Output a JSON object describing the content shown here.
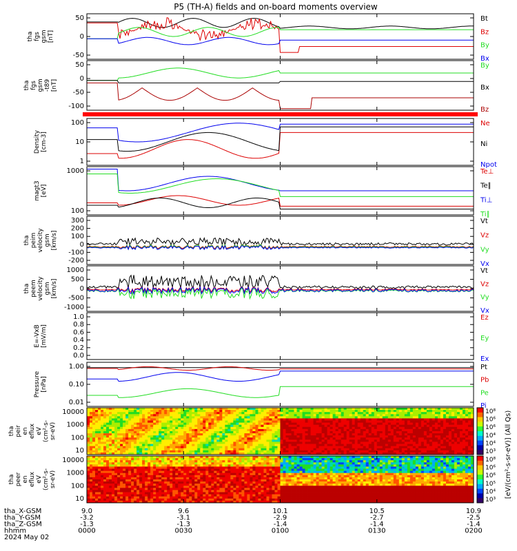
{
  "title": "P5 (TH-A) fields and on-board moments overview",
  "colors": {
    "black": "#000000",
    "red": "#dd0000",
    "green": "#22dd22",
    "blue": "#0000ee",
    "darkred": "#aa0000",
    "band": "#ff0000"
  },
  "chart_data": {
    "type": "line",
    "x_axis": {
      "rows": [
        {
          "label": "tha_X-GSM",
          "values": [
            "9.0",
            "9.6",
            "10.1",
            "10.5",
            "10.9"
          ]
        },
        {
          "label": "tha_Y-GSM",
          "values": [
            "-3.2",
            "-3.1",
            "-2.9",
            "-2.7",
            "-2.5"
          ]
        },
        {
          "label": "tha_Z-GSM",
          "values": [
            "-1.3",
            "-1.3",
            "-1.4",
            "-1.4",
            "-1.4"
          ]
        },
        {
          "label": "hhmm",
          "values": [
            "0000",
            "0030",
            "0100",
            "0130",
            "0200"
          ]
        }
      ],
      "date": "2024 May 02",
      "time_range": [
        "00:00",
        "02:00"
      ]
    },
    "panels": [
      {
        "id": "fgs-gsm",
        "ylabel": [
          "tha",
          "fgs",
          "gsm",
          "[nT]"
        ],
        "ticks": [
          "50",
          "0",
          "-50"
        ],
        "ylim": [
          -75,
          85
        ],
        "series": [
          {
            "name": "Bt",
            "color": "black"
          },
          {
            "name": "Bz",
            "color": "red"
          },
          {
            "name": "By",
            "color": "green"
          },
          {
            "name": "Bx",
            "color": "blue"
          }
        ]
      },
      {
        "id": "fgs-gsm-t89",
        "ylabel": [
          "tha",
          "fgs",
          "gsm",
          "-t89",
          "[nT]"
        ],
        "ticks": [
          "50",
          "0",
          "-50",
          "-100"
        ],
        "ylim": [
          -125,
          75
        ],
        "series": [
          {
            "name": "By",
            "color": "green"
          },
          {
            "name": "Bx",
            "color": "black"
          },
          {
            "name": "Bz",
            "color": "darkred"
          }
        ]
      },
      {
        "id": "density",
        "ylabel": [
          "Density",
          "[cm-3]"
        ],
        "ticks": [
          "100",
          "10",
          "1"
        ],
        "log": true,
        "ylim": [
          0.4,
          150
        ],
        "series": [
          {
            "name": "Ne",
            "color": "red"
          },
          {
            "name": "Ni",
            "color": "black"
          },
          {
            "name": "Npot",
            "color": "blue"
          }
        ]
      },
      {
        "id": "temperature",
        "ylabel": [
          "magt3",
          "[eV]"
        ],
        "ticks": [
          "1000",
          "100"
        ],
        "log": true,
        "ylim": [
          40,
          3000
        ],
        "series": [
          {
            "name": "Te⊥",
            "color": "red"
          },
          {
            "name": "Te∥",
            "color": "black"
          },
          {
            "name": "Ti⊥",
            "color": "blue"
          },
          {
            "name": "Ti∥",
            "color": "green"
          }
        ]
      },
      {
        "id": "peim-velocity",
        "ylabel": [
          "tha",
          "peim",
          "velocity",
          "gsm",
          "[km/s]"
        ],
        "ticks": [
          "300",
          "200",
          "100",
          "0",
          "-100",
          "-200"
        ],
        "ylim": [
          -220,
          360
        ],
        "series": [
          {
            "name": "Vt",
            "color": "black"
          },
          {
            "name": "Vz",
            "color": "red"
          },
          {
            "name": "Vy",
            "color": "green"
          },
          {
            "name": "Vx",
            "color": "blue"
          }
        ]
      },
      {
        "id": "peem-velocity",
        "ylabel": [
          "tha",
          "peem",
          "velocity",
          "gsm",
          "[km/s]"
        ],
        "ticks": [
          "1000",
          "500",
          "0",
          "-500",
          "-1000"
        ],
        "ylim": [
          -1100,
          1150
        ],
        "series": [
          {
            "name": "Vt",
            "color": "black"
          },
          {
            "name": "Vz",
            "color": "red"
          },
          {
            "name": "Vy",
            "color": "green"
          },
          {
            "name": "Vx",
            "color": "blue"
          }
        ]
      },
      {
        "id": "efield",
        "ylabel": [
          "E=-VxB",
          "[mV/m]"
        ],
        "ticks": [
          "1.0",
          "0.8",
          "0.6",
          "0.4",
          "0.2",
          "0.0"
        ],
        "ylim": [
          0,
          1
        ],
        "series": [
          {
            "name": "Ez",
            "color": "red"
          },
          {
            "name": "Ey",
            "color": "green"
          },
          {
            "name": "Ex",
            "color": "blue"
          }
        ]
      },
      {
        "id": "pressure",
        "ylabel": [
          "Pressure",
          "[nPa]"
        ],
        "ticks": [
          "1.00",
          "0.10",
          "0.01"
        ],
        "log": true,
        "ylim": [
          0.01,
          2.5
        ],
        "series": [
          {
            "name": "Pt",
            "color": "black"
          },
          {
            "name": "Pb",
            "color": "red"
          },
          {
            "name": "Pe",
            "color": "green"
          },
          {
            "name": "Pi",
            "color": "blue"
          }
        ]
      },
      {
        "id": "peir-eflux",
        "type": "heatmap",
        "ylabel": [
          "tha",
          "peir",
          "en",
          "eflux",
          "eV",
          "(cm²-s-",
          "sr-eV)"
        ],
        "ticks": [
          "10000",
          "1000",
          "100",
          "10"
        ],
        "log": true
      },
      {
        "id": "peer-eflux",
        "type": "heatmap",
        "ylabel": [
          "tha",
          "peer",
          "en",
          "eflux",
          "eV",
          "(cm²-s-",
          "sr-eV)"
        ],
        "ticks": [
          "10000",
          "1000",
          "100",
          "10"
        ],
        "log": true
      }
    ],
    "colorbar": {
      "label": "[eV/(cm²-s-sr-eV)] (All Qs)",
      "top_ticks": [
        "10⁸",
        "10⁶",
        "10⁶",
        "10⁴",
        "10⁴",
        "10³"
      ],
      "bottom_ticks": [
        "10⁸",
        "10⁶",
        "10⁶",
        "10⁵",
        "10⁴",
        "10³"
      ]
    }
  }
}
